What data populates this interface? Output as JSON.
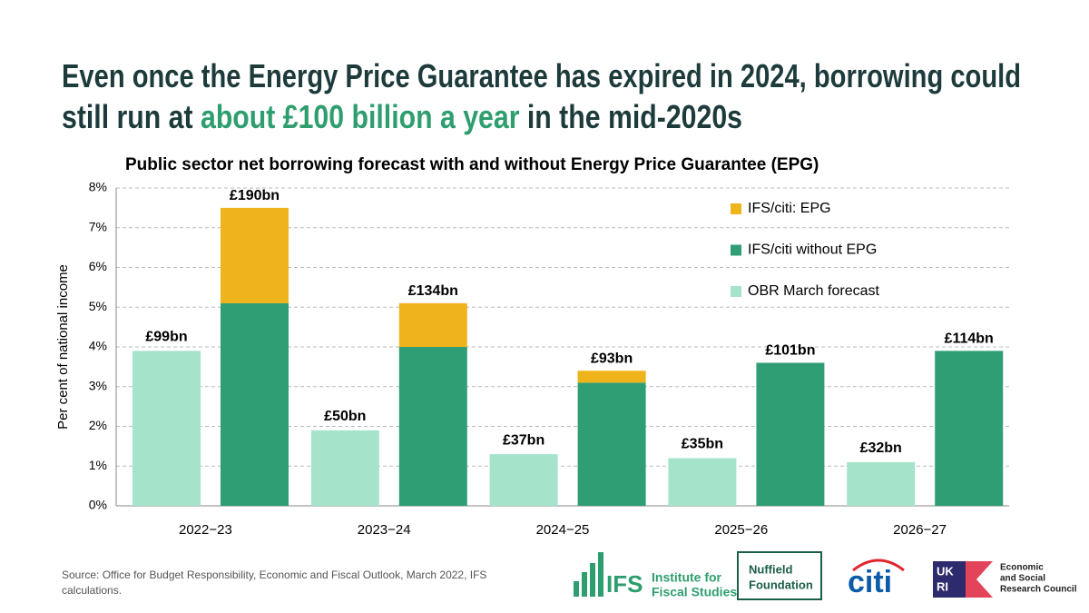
{
  "header": {
    "title_line1": "Even once the Energy Price Guarantee has expired in 2024, borrowing could",
    "title_line2_start": "still run at ",
    "title_highlight": "about £100 billion a year",
    "title_line2_end": " in the mid-2020s"
  },
  "chart_data": {
    "type": "bar",
    "title": "Public sector net borrowing forecast with and without Energy Price Guarantee (EPG)",
    "y_label": "Per cent of national income",
    "categories": [
      "2022−23",
      "2023−24",
      "2024−25",
      "2025−26",
      "2026−27"
    ],
    "series": [
      {
        "name": "OBR March forecast",
        "color": "#a6e3cb",
        "values": [
          3.9,
          1.9,
          1.3,
          1.2,
          1.1
        ],
        "cash_labels": [
          "£99bn",
          "£50bn",
          "£37bn",
          "£35bn",
          "£32bn"
        ]
      },
      {
        "name": "IFS/citi without EPG",
        "color": "#2f9e74",
        "values": [
          5.1,
          4.0,
          3.1,
          3.6,
          3.9
        ]
      },
      {
        "name": "IFS/citi: EPG",
        "color": "#efb31b",
        "values": [
          2.4,
          1.1,
          0.3,
          null,
          null
        ]
      }
    ],
    "total_cash_labels": [
      "£190bn",
      "£134bn",
      "£93bn",
      "£101bn",
      "£114bn"
    ],
    "ylim": [
      0,
      8
    ],
    "yticks": [
      {
        "value": 0,
        "label": "0%"
      },
      {
        "value": 1,
        "label": "1%"
      },
      {
        "value": 2,
        "label": "2%"
      },
      {
        "value": 3,
        "label": "3%"
      },
      {
        "value": 4,
        "label": "4%"
      },
      {
        "value": 5,
        "label": "5%"
      },
      {
        "value": 6,
        "label": "6%"
      },
      {
        "value": 7,
        "label": "7%"
      },
      {
        "value": 8,
        "label": "8%"
      }
    ],
    "grid": true
  },
  "footer": {
    "source": "Source: Office for Budget Responsibility, Economic and Fiscal Outlook, March 2022, IFS calculations.",
    "logos": {
      "ifs": "IFS",
      "ifs_line1": "Institute for",
      "ifs_line2": "Fiscal Studies",
      "nuffield_line1": "Nuffield",
      "nuffield_line2": "Foundation",
      "citi": "citi",
      "ukri_line1": "UK",
      "ukri_line2": "RI",
      "esrc_line1": "Economic",
      "esrc_line2": "and Social",
      "esrc_line3": "Research Council"
    }
  }
}
